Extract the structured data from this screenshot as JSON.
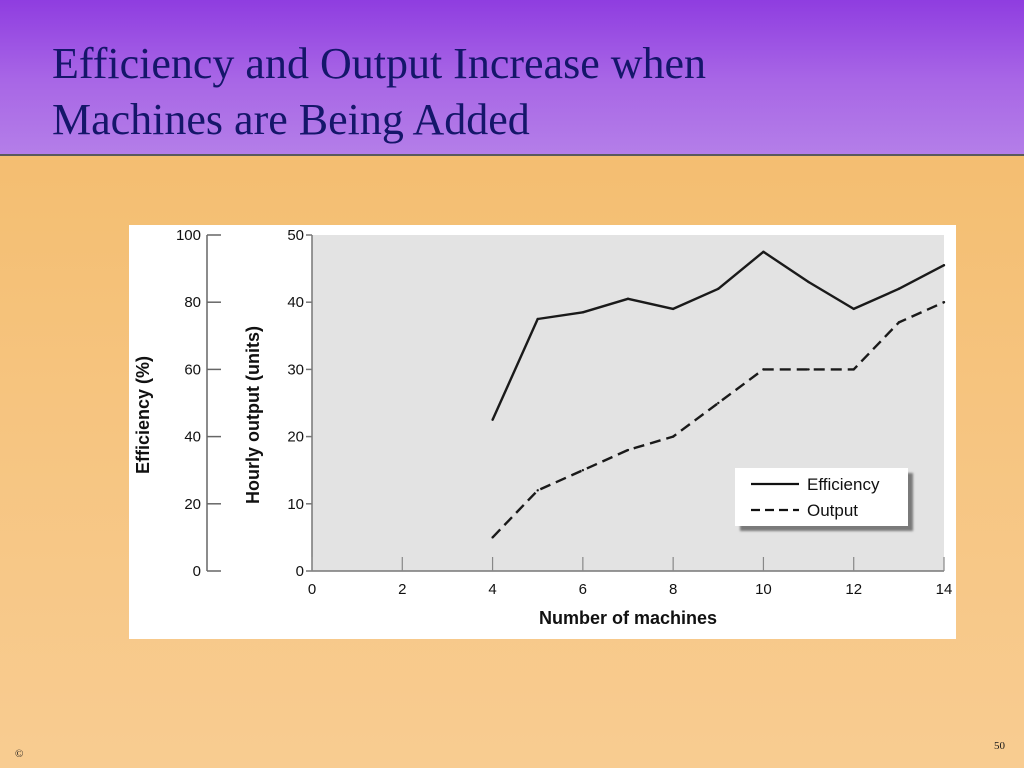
{
  "slide": {
    "title_line1": "Efficiency and Output Increase when",
    "title_line2": "Machines are Being Added",
    "copyright": "©",
    "page_number": "50"
  },
  "colors": {
    "header_top": "#8f3de0",
    "header_bottom": "#b47ee8",
    "title_text": "#15166a",
    "background": "#f6c47f",
    "plot_area": "#e3e3e3",
    "line": "#1a1a1a"
  },
  "chart_data": {
    "type": "line",
    "title": "",
    "xlabel": "Number of machines",
    "ylabel_left": "Efficiency (%)",
    "ylabel_right": "Hourly output (units)",
    "xlim": [
      0,
      14
    ],
    "xticks": [
      "0",
      "2",
      "4",
      "6",
      "8",
      "10",
      "12",
      "14"
    ],
    "efficiency_axis": {
      "ylim": [
        0,
        100
      ],
      "ticks": [
        "0",
        "20",
        "40",
        "60",
        "80",
        "100"
      ]
    },
    "output_axis": {
      "ylim": [
        0,
        50
      ],
      "ticks": [
        "0",
        "10",
        "20",
        "30",
        "40",
        "50"
      ]
    },
    "grid": false,
    "legend_position": "bottom-right",
    "series": [
      {
        "name": "Efficiency",
        "axis": "efficiency",
        "style": "solid",
        "x": [
          4,
          5,
          6,
          7,
          8,
          9,
          10,
          11,
          12,
          13,
          14
        ],
        "values": [
          45,
          75,
          77,
          81,
          78,
          84,
          95,
          86,
          78,
          84,
          91
        ]
      },
      {
        "name": "Output",
        "axis": "output",
        "style": "dashed",
        "x": [
          4,
          5,
          6,
          7,
          8,
          9,
          10,
          11,
          12,
          13,
          14
        ],
        "values": [
          5,
          12,
          15,
          18,
          20,
          25,
          30,
          30,
          30,
          37,
          40
        ]
      }
    ]
  }
}
